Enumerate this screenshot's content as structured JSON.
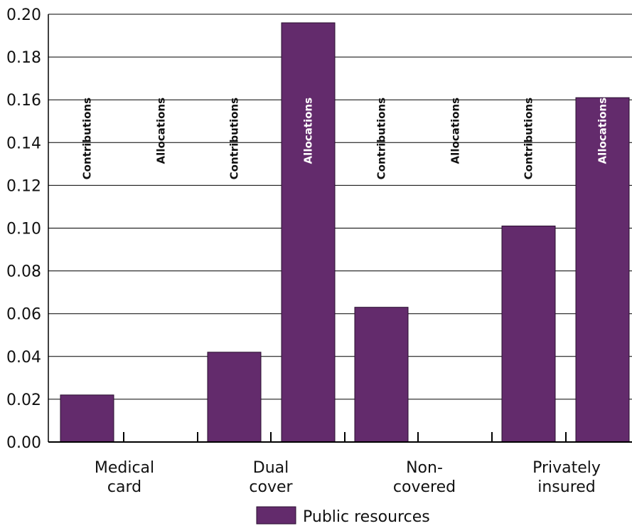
{
  "chart_data": {
    "type": "bar",
    "title": "",
    "xlabel": "",
    "ylabel": "",
    "ylim": [
      0,
      0.2
    ],
    "yticks": [
      "0.00",
      "0.02",
      "0.04",
      "0.06",
      "0.08",
      "0.10",
      "0.12",
      "0.14",
      "0.16",
      "0.18",
      "0.20"
    ],
    "grid": "horizontal",
    "legend_position": "bottom-center",
    "colors": {
      "bar": "#632b6c",
      "axis": "#000000",
      "grid": "#000000"
    },
    "categories": [
      {
        "label_lines": [
          "Medical",
          "card"
        ]
      },
      {
        "label_lines": [
          "Dual",
          "cover"
        ]
      },
      {
        "label_lines": [
          "Non-",
          "covered"
        ]
      },
      {
        "label_lines": [
          "Privately",
          "insured"
        ]
      }
    ],
    "bar_labels": [
      "Contributions",
      "Allocations"
    ],
    "series": [
      {
        "name": "Public resources",
        "values": [
          {
            "group": 0,
            "bar": "Contributions",
            "value": 0.022
          },
          {
            "group": 0,
            "bar": "Allocations",
            "value": 0.0
          },
          {
            "group": 1,
            "bar": "Contributions",
            "value": 0.042
          },
          {
            "group": 1,
            "bar": "Allocations",
            "value": 0.196
          },
          {
            "group": 2,
            "bar": "Contributions",
            "value": 0.063
          },
          {
            "group": 2,
            "bar": "Allocations",
            "value": 0.0
          },
          {
            "group": 3,
            "bar": "Contributions",
            "value": 0.101
          },
          {
            "group": 3,
            "bar": "Allocations",
            "value": 0.161
          }
        ]
      }
    ],
    "legend": [
      {
        "label": "Public resources",
        "color": "#632b6c"
      }
    ]
  }
}
